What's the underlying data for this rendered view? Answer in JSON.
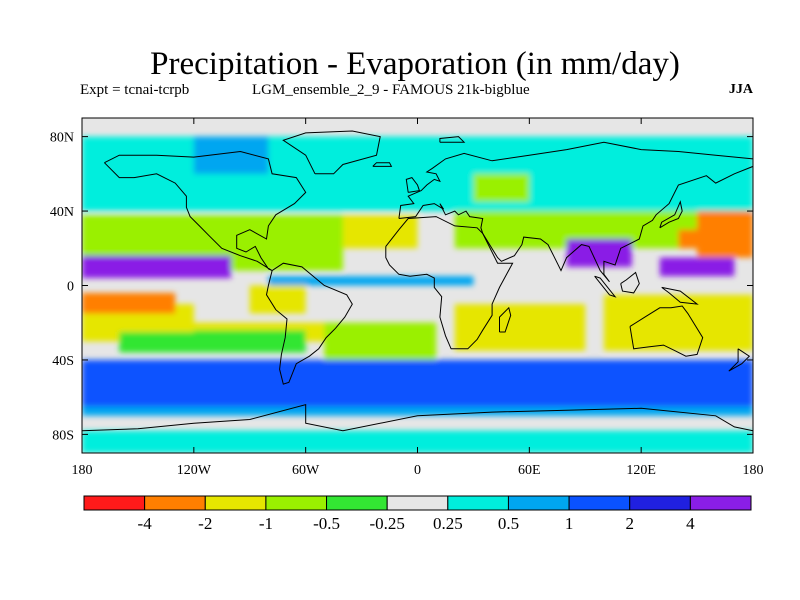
{
  "title": "Precipitation - Evaporation (in mm/day)",
  "subtitle_left": "Expt = tcnai-tcrpb",
  "subtitle_mid": "LGM_ensemble_2_9 - FAMOUS 21k-bigblue",
  "subtitle_right": "JJA",
  "chart_data": {
    "type": "heatmap",
    "title": "Precipitation - Evaporation (in mm/day)",
    "xlabel": "",
    "ylabel": "",
    "xlim": [
      -180,
      180
    ],
    "ylim": [
      -90,
      90
    ],
    "x_ticks": [
      {
        "value": -180,
        "label": "180"
      },
      {
        "value": -120,
        "label": "120W"
      },
      {
        "value": -60,
        "label": "60W"
      },
      {
        "value": 0,
        "label": "0"
      },
      {
        "value": 60,
        "label": "60E"
      },
      {
        "value": 120,
        "label": "120E"
      },
      {
        "value": 180,
        "label": "180"
      }
    ],
    "y_ticks": [
      {
        "value": 80,
        "label": "80N"
      },
      {
        "value": 40,
        "label": "40N"
      },
      {
        "value": 0,
        "label": "0"
      },
      {
        "value": -40,
        "label": "40S"
      },
      {
        "value": -80,
        "label": "80S"
      }
    ],
    "levels": [
      "-4",
      "-2",
      "-1",
      "-0.5",
      "-0.25",
      "0.25",
      "0.5",
      "1",
      "2",
      "4"
    ],
    "colors": [
      "#ff1a1a",
      "#ff7f00",
      "#e6e600",
      "#9af000",
      "#33e633",
      "#e6e6e6",
      "#00eedd",
      "#00a6f0",
      "#0a52ff",
      "#2020e0",
      "#8a1ee6"
    ],
    "grid": false,
    "legend": "bottom colorbar",
    "contours": [
      {
        "name": "tropical-pacific-wet-band",
        "bin": 10,
        "lon_range": [
          -180,
          -100
        ],
        "lat_range": [
          4,
          16
        ]
      },
      {
        "name": "indian-monsoon-wet-core",
        "bin": 10,
        "lon_range": [
          80,
          115
        ],
        "lat_range": [
          10,
          25
        ]
      },
      {
        "name": "west-pacific-wet-core",
        "bin": 10,
        "lon_range": [
          130,
          170
        ],
        "lat_range": [
          5,
          15
        ]
      },
      {
        "name": "south-pacific-dry-core",
        "bin": 1,
        "lon_range": [
          -180,
          -130
        ],
        "lat_range": [
          -15,
          -4
        ]
      },
      {
        "name": "north-pacific-dry-core",
        "bin": 1,
        "lon_range": [
          140,
          180
        ],
        "lat_range": [
          20,
          30
        ]
      },
      {
        "name": "southern-ocean-wet-band",
        "bin": 8,
        "lon_range": [
          -180,
          180
        ],
        "lat_range": [
          -65,
          -40
        ]
      }
    ]
  }
}
